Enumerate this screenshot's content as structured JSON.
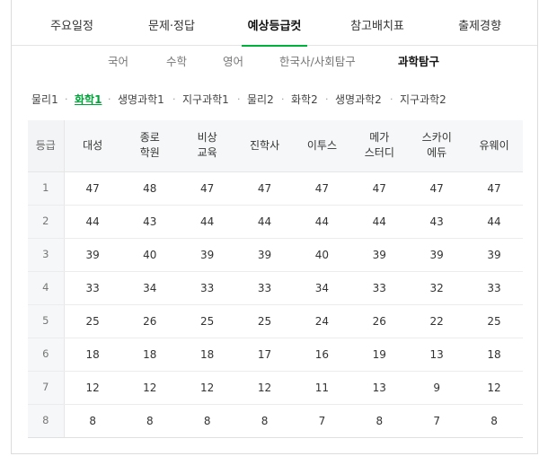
{
  "main_tabs": [
    {
      "label": "주요일정"
    },
    {
      "label": "문제·정답"
    },
    {
      "label": "예상등급컷"
    },
    {
      "label": "참고배치표"
    },
    {
      "label": "출제경향"
    }
  ],
  "sub_tabs": [
    {
      "label": "국어"
    },
    {
      "label": "수학"
    },
    {
      "label": "영어"
    },
    {
      "label": "한국사/사회탐구"
    },
    {
      "label": "과학탐구"
    }
  ],
  "subject_tabs": [
    {
      "label": "물리1"
    },
    {
      "label": "화학1"
    },
    {
      "label": "생명과학1"
    },
    {
      "label": "지구과학1"
    },
    {
      "label": "물리2"
    },
    {
      "label": "화학2"
    },
    {
      "label": "생명과학2"
    },
    {
      "label": "지구과학2"
    }
  ],
  "table": {
    "grade_header": "등급",
    "columns": [
      {
        "line1": "대성",
        "line2": ""
      },
      {
        "line1": "종로",
        "line2": "학원"
      },
      {
        "line1": "비상",
        "line2": "교육"
      },
      {
        "line1": "진학사",
        "line2": ""
      },
      {
        "line1": "이투스",
        "line2": ""
      },
      {
        "line1": "메가",
        "line2": "스터디"
      },
      {
        "line1": "스카이",
        "line2": "에듀"
      },
      {
        "line1": "유웨이",
        "line2": ""
      }
    ],
    "rows": [
      {
        "grade": "1",
        "values": [
          "47",
          "48",
          "47",
          "47",
          "47",
          "47",
          "47",
          "47"
        ]
      },
      {
        "grade": "2",
        "values": [
          "44",
          "43",
          "44",
          "44",
          "44",
          "44",
          "43",
          "44"
        ]
      },
      {
        "grade": "3",
        "values": [
          "39",
          "40",
          "39",
          "39",
          "40",
          "39",
          "39",
          "39"
        ]
      },
      {
        "grade": "4",
        "values": [
          "33",
          "34",
          "33",
          "33",
          "34",
          "33",
          "32",
          "33"
        ]
      },
      {
        "grade": "5",
        "values": [
          "25",
          "26",
          "25",
          "25",
          "24",
          "26",
          "22",
          "25"
        ]
      },
      {
        "grade": "6",
        "values": [
          "18",
          "18",
          "18",
          "17",
          "16",
          "19",
          "13",
          "18"
        ]
      },
      {
        "grade": "7",
        "values": [
          "12",
          "12",
          "12",
          "12",
          "11",
          "13",
          "9",
          "12"
        ]
      },
      {
        "grade": "8",
        "values": [
          "8",
          "8",
          "8",
          "8",
          "7",
          "8",
          "7",
          "8"
        ]
      }
    ]
  }
}
